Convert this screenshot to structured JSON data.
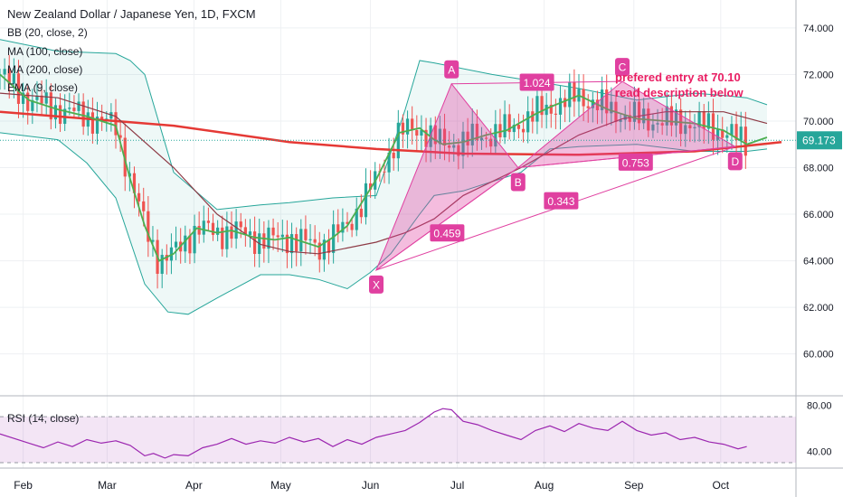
{
  "header": {
    "title": "New Zealand Dollar / Japanese Yen, 1D, FXCM",
    "indicators": [
      "BB (20, close, 2)",
      "MA (100, close)",
      "MA (200, close)",
      "EMA (9, close)"
    ],
    "rsi_label": "RSI (14, close)"
  },
  "annotation": {
    "line1": "prefered entry at 70.10",
    "line2": "read description below"
  },
  "colors": {
    "pattern": "#e040a0",
    "price_badge": "#26a69a",
    "ma200": "#e53935",
    "ma100": "#8d3a45",
    "ema9": "#4caf50",
    "bb": "#26a69a",
    "rsi_line": "#9c27b0",
    "candle_up": "#26a69a",
    "candle_down": "#ef5350"
  },
  "chart_data": [
    {
      "type": "line",
      "subtype": "candlestick",
      "ylim": [
        58.2,
        75.2
      ],
      "y_axis_ticks": [
        "60.000",
        "62.000",
        "64.000",
        "66.000",
        "68.000",
        "70.000",
        "72.000",
        "74.000"
      ],
      "x_axis_ticks": [
        "Feb",
        "Mar",
        "Apr",
        "May",
        "Jun",
        "Jul",
        "Aug",
        "Sep",
        "Oct"
      ],
      "last_price_label": "69.173",
      "series": [
        {
          "name": "MA (200, close)",
          "x_days": [
            0,
            60,
            100,
            130,
            160,
            200,
            240,
            270
          ],
          "values": [
            70.4,
            69.8,
            69.1,
            68.8,
            68.6,
            68.55,
            68.7,
            69.1
          ]
        },
        {
          "name": "MA (100, close)",
          "x_days": [
            0,
            20,
            40,
            60,
            75,
            90,
            100,
            110,
            130,
            140,
            150,
            160,
            180,
            200,
            215,
            230,
            250,
            265
          ],
          "values": [
            71.2,
            71.0,
            70.2,
            68.0,
            66.0,
            64.7,
            64.4,
            64.3,
            64.8,
            65.2,
            65.8,
            66.8,
            68.0,
            69.4,
            70.1,
            70.4,
            70.4,
            69.9
          ]
        },
        {
          "name": "EMA (9, close)",
          "x_days": [
            0,
            10,
            20,
            30,
            40,
            45,
            50,
            55,
            60,
            68,
            75,
            80,
            88,
            95,
            100,
            110,
            115,
            120,
            130,
            138,
            145,
            150,
            153,
            160,
            168,
            175,
            185,
            190,
            200,
            210,
            215,
            220,
            230,
            240,
            250,
            258,
            265
          ],
          "values": [
            72.0,
            70.9,
            70.5,
            70.2,
            69.8,
            67.5,
            65.5,
            64.0,
            64.3,
            65.4,
            65.2,
            65.3,
            65.0,
            64.9,
            65.0,
            64.6,
            65.0,
            65.5,
            67.5,
            69.5,
            69.7,
            69.2,
            69.0,
            69.1,
            69.4,
            69.6,
            70.3,
            70.6,
            71.1,
            70.5,
            70.3,
            70.1,
            70.0,
            69.9,
            69.6,
            69.0,
            69.3
          ]
        },
        {
          "name": "BB (20, close, 2) upper",
          "x_days": [
            0,
            20,
            40,
            45,
            50,
            60,
            75,
            90,
            100,
            115,
            130,
            140,
            145,
            150,
            170,
            200,
            220,
            240,
            250,
            258,
            265
          ],
          "values": [
            73.5,
            73.0,
            72.9,
            72.6,
            72.0,
            67.8,
            66.2,
            66.4,
            66.5,
            66.7,
            66.8,
            70.5,
            72.6,
            72.5,
            72.0,
            71.4,
            70.9,
            71.2,
            71.1,
            71.0,
            70.7
          ]
        },
        {
          "name": "BB (20, close, 2) lower",
          "x_days": [
            0,
            20,
            30,
            40,
            50,
            58,
            65,
            75,
            90,
            100,
            110,
            120,
            128,
            135,
            145,
            150,
            160,
            170,
            180,
            190,
            200,
            220,
            240,
            258,
            265
          ],
          "values": [
            69.5,
            69.2,
            68.2,
            66.7,
            63.0,
            61.8,
            61.7,
            62.4,
            63.4,
            63.4,
            63.2,
            62.8,
            63.5,
            64.3,
            66.0,
            66.8,
            67.0,
            67.4,
            67.8,
            68.8,
            68.9,
            69.0,
            68.7,
            68.7,
            68.8
          ]
        }
      ],
      "harmonic_pattern": {
        "points": [
          {
            "label": "X",
            "day": 130,
            "value": 63.6
          },
          {
            "label": "A",
            "day": 156,
            "value": 71.6
          },
          {
            "label": "B",
            "day": 179,
            "value": 68.0
          },
          {
            "label": "C",
            "day": 215,
            "value": 71.7
          },
          {
            "label": "D",
            "day": 254,
            "value": 68.9
          }
        ],
        "ratios": [
          "1.024",
          "0.459",
          "0.753",
          "0.343"
        ]
      }
    },
    {
      "type": "line",
      "title": "RSI (14, close)",
      "ylim": [
        30,
        85
      ],
      "y_axis_ticks": [
        "40.00",
        "80.00"
      ],
      "band": [
        30,
        70
      ],
      "series": [
        {
          "name": "RSI",
          "x_days": [
            0,
            10,
            15,
            20,
            25,
            30,
            35,
            40,
            45,
            50,
            53,
            57,
            60,
            65,
            70,
            75,
            80,
            85,
            90,
            95,
            100,
            105,
            110,
            115,
            120,
            125,
            130,
            135,
            140,
            145,
            150,
            153,
            156,
            160,
            165,
            170,
            175,
            180,
            185,
            190,
            195,
            200,
            205,
            210,
            215,
            220,
            225,
            230,
            235,
            240,
            245,
            250,
            255,
            258
          ],
          "values": [
            55,
            47,
            43,
            48,
            44,
            50,
            47,
            49,
            45,
            36,
            38,
            34,
            37,
            36,
            43,
            46,
            51,
            46,
            49,
            47,
            52,
            48,
            51,
            44,
            50,
            46,
            52,
            55,
            58,
            65,
            74,
            77,
            76,
            66,
            63,
            58,
            54,
            50,
            58,
            62,
            57,
            64,
            60,
            58,
            66,
            58,
            54,
            56,
            50,
            52,
            48,
            46,
            42,
            44
          ]
        }
      ]
    }
  ]
}
